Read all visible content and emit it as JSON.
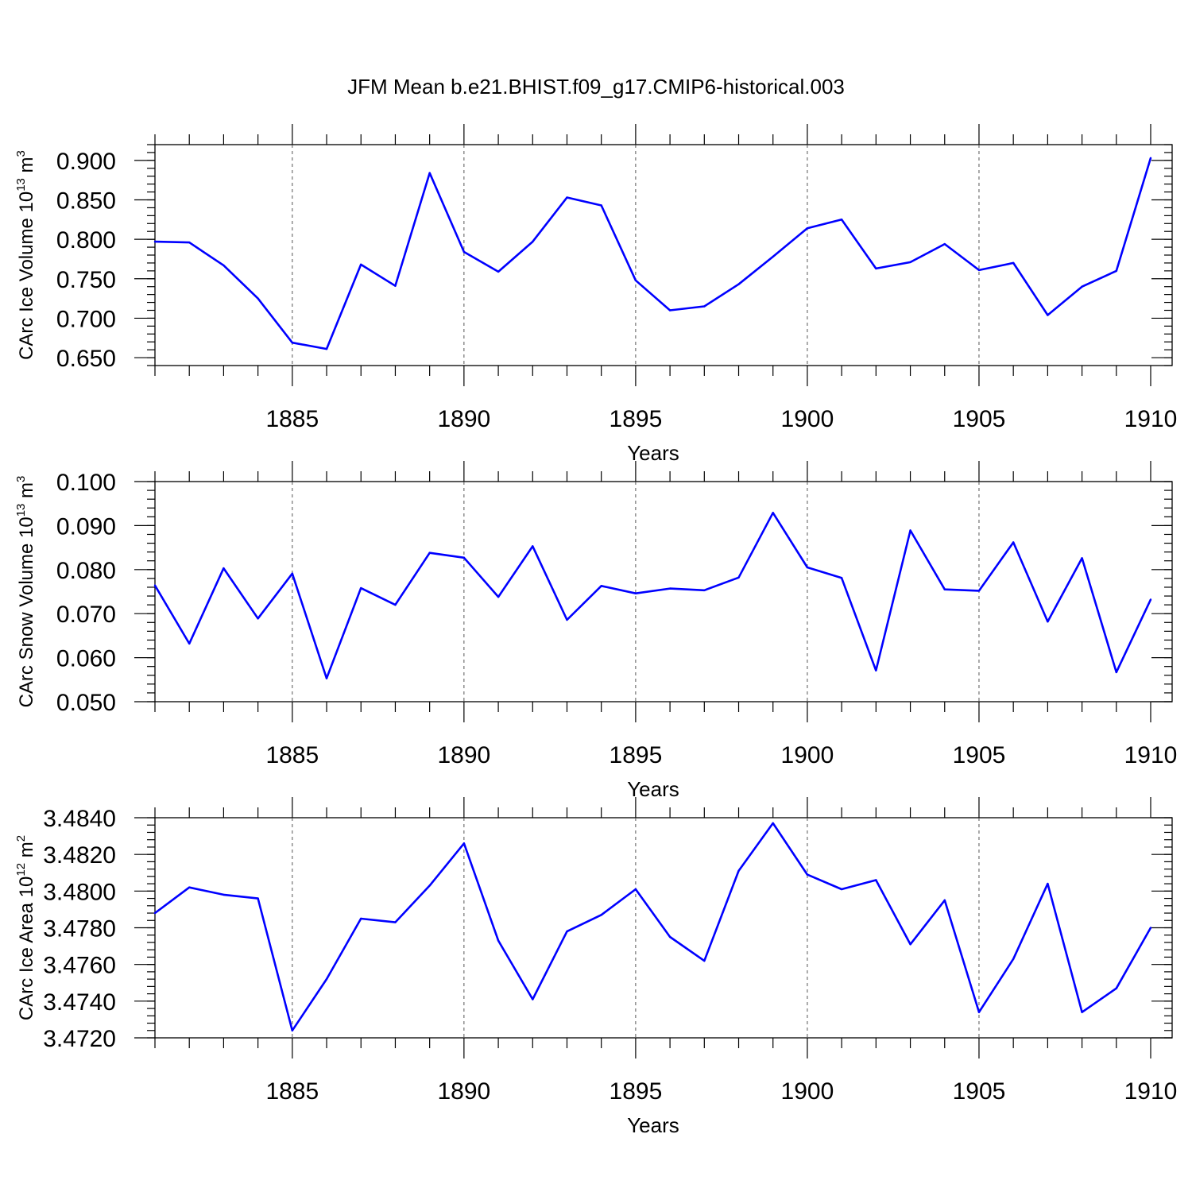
{
  "title": "JFM Mean b.e21.BHIST.f09_g17.CMIP6-historical.003",
  "chart_data": [
    {
      "type": "line",
      "ylabel": "CArc Ice Volume 10",
      "ylabel_exp": "13",
      "ylabel_unit": " m",
      "ylabel_unit_exp": "3",
      "xlabel": "Years",
      "xlim": [
        1881,
        1910
      ],
      "ylim": [
        0.64,
        0.92
      ],
      "yticks": [
        0.65,
        0.7,
        0.75,
        0.8,
        0.85,
        0.9
      ],
      "ytick_labels": [
        "0.650",
        "0.700",
        "0.750",
        "0.800",
        "0.850",
        "0.900"
      ],
      "yminor_step": 0.01,
      "xticks": [
        1885,
        1890,
        1895,
        1900,
        1905,
        1910
      ],
      "xtick_labels": [
        "1885",
        "1890",
        "1895",
        "1900",
        "1905",
        "1910"
      ],
      "line_color": "#0000ff",
      "series": [
        {
          "name": "CArc Ice Volume",
          "x": [
            1881,
            1882,
            1883,
            1884,
            1885,
            1886,
            1887,
            1888,
            1889,
            1890,
            1891,
            1892,
            1893,
            1894,
            1895,
            1896,
            1897,
            1898,
            1899,
            1900,
            1901,
            1902,
            1903,
            1904,
            1905,
            1906,
            1907,
            1908,
            1909,
            1910
          ],
          "values": [
            0.797,
            0.796,
            0.767,
            0.725,
            0.669,
            0.661,
            0.768,
            0.741,
            0.884,
            0.784,
            0.759,
            0.797,
            0.853,
            0.843,
            0.748,
            0.71,
            0.715,
            0.743,
            0.778,
            0.814,
            0.825,
            0.763,
            0.771,
            0.794,
            0.761,
            0.77,
            0.704,
            0.74,
            0.76,
            0.903
          ]
        }
      ]
    },
    {
      "type": "line",
      "ylabel": "CArc Snow Volume 10",
      "ylabel_exp": "13",
      "ylabel_unit": " m",
      "ylabel_unit_exp": "3",
      "xlabel": "Years",
      "xlim": [
        1881,
        1910
      ],
      "ylim": [
        0.05,
        0.1
      ],
      "yticks": [
        0.05,
        0.06,
        0.07,
        0.08,
        0.09,
        0.1
      ],
      "ytick_labels": [
        "0.050",
        "0.060",
        "0.070",
        "0.080",
        "0.090",
        "0.100"
      ],
      "yminor_step": 0.002,
      "xticks": [
        1885,
        1890,
        1895,
        1900,
        1905,
        1910
      ],
      "xtick_labels": [
        "1885",
        "1890",
        "1895",
        "1900",
        "1905",
        "1910"
      ],
      "line_color": "#0000ff",
      "series": [
        {
          "name": "CArc Snow Volume",
          "x": [
            1881,
            1882,
            1883,
            1884,
            1885,
            1886,
            1887,
            1888,
            1889,
            1890,
            1891,
            1892,
            1893,
            1894,
            1895,
            1896,
            1897,
            1898,
            1899,
            1900,
            1901,
            1902,
            1903,
            1904,
            1905,
            1906,
            1907,
            1908,
            1909,
            1910
          ],
          "values": [
            0.0764,
            0.0632,
            0.0803,
            0.0689,
            0.0791,
            0.0553,
            0.0758,
            0.072,
            0.0838,
            0.0827,
            0.0738,
            0.0853,
            0.0686,
            0.0763,
            0.0746,
            0.0757,
            0.0753,
            0.0782,
            0.0929,
            0.0805,
            0.0781,
            0.0571,
            0.0889,
            0.0755,
            0.0752,
            0.0862,
            0.0682,
            0.0826,
            0.0567,
            0.0732
          ]
        }
      ]
    },
    {
      "type": "line",
      "ylabel": "CArc Ice Area 10",
      "ylabel_exp": "12",
      "ylabel_unit": " m",
      "ylabel_unit_exp": "2",
      "xlabel": "Years",
      "xlim": [
        1881,
        1910
      ],
      "ylim": [
        3.472,
        3.484
      ],
      "yticks": [
        3.472,
        3.474,
        3.476,
        3.478,
        3.48,
        3.482,
        3.484
      ],
      "ytick_labels": [
        "3.4720",
        "3.4740",
        "3.4760",
        "3.4780",
        "3.4800",
        "3.4820",
        "3.4840"
      ],
      "yminor_step": 0.0004,
      "xticks": [
        1885,
        1890,
        1895,
        1900,
        1905,
        1910
      ],
      "xtick_labels": [
        "1885",
        "1890",
        "1895",
        "1900",
        "1905",
        "1910"
      ],
      "line_color": "#0000ff",
      "series": [
        {
          "name": "CArc Ice Area",
          "x": [
            1881,
            1882,
            1883,
            1884,
            1885,
            1886,
            1887,
            1888,
            1889,
            1890,
            1891,
            1892,
            1893,
            1894,
            1895,
            1896,
            1897,
            1898,
            1899,
            1900,
            1901,
            1902,
            1903,
            1904,
            1905,
            1906,
            1907,
            1908,
            1909,
            1910
          ],
          "values": [
            3.4788,
            3.4802,
            3.4798,
            3.4796,
            3.4724,
            3.4752,
            3.4785,
            3.4783,
            3.4803,
            3.4826,
            3.4773,
            3.4741,
            3.4778,
            3.4787,
            3.4801,
            3.4775,
            3.4762,
            3.4811,
            3.4837,
            3.4809,
            3.4801,
            3.4806,
            3.4771,
            3.4795,
            3.4734,
            3.4763,
            3.4804,
            3.4734,
            3.4747,
            3.478
          ]
        }
      ]
    }
  ]
}
